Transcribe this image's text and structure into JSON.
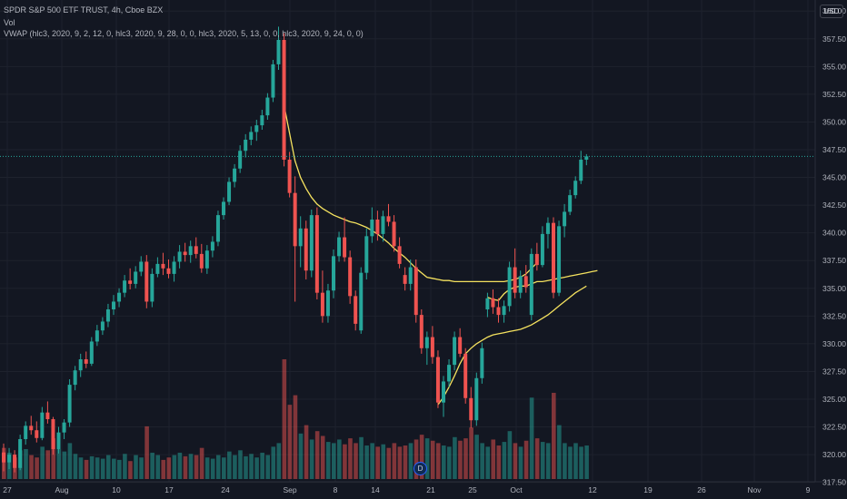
{
  "header": {
    "title": "SPDR S&P 500 ETF TRUST, 4h, Cboe BZX",
    "vol_label": "Vol",
    "vwap_label": "VWAP (hlc3, 2020, 9, 2, 12, 0, hlc3, 2020, 9, 28, 0, 0, hlc3, 2020, 5, 13, 0, 0, hlc3, 2020, 9, 24, 0, 0)",
    "currency": "USD"
  },
  "event_badge": "D",
  "colors": {
    "background": "#131722",
    "up": "#26a69a",
    "down": "#ef5350",
    "vwap": "#f5e25f",
    "grid": "#1e222d",
    "text": "#b2b5be"
  },
  "chart_data": {
    "type": "candlestick",
    "interval": "4h",
    "price_scale": {
      "ticks": [
        "360.00",
        "357.50",
        "355.00",
        "352.50",
        "350.00",
        "347.50",
        "345.00",
        "342.50",
        "340.00",
        "337.50",
        "335.00",
        "332.50",
        "330.00",
        "327.50",
        "325.00",
        "322.50",
        "320.00",
        "317.50"
      ],
      "range": [
        316.0,
        361.0
      ]
    },
    "time_axis": {
      "labels": [
        "27",
        "Aug",
        "10",
        "17",
        "24",
        "Sep",
        "8",
        "14",
        "21",
        "25",
        "Oct",
        "12",
        "19",
        "26",
        "Nov",
        "9"
      ]
    },
    "current_price": 346.9,
    "candles": [
      [
        320.2,
        321.0,
        318.5,
        319.3
      ],
      [
        319.3,
        320.6,
        318.7,
        320.0
      ],
      [
        320.0,
        320.4,
        318.4,
        318.8
      ],
      [
        318.8,
        321.8,
        318.6,
        321.4
      ],
      [
        321.4,
        323.0,
        320.9,
        322.6
      ],
      [
        322.6,
        323.5,
        321.8,
        322.2
      ],
      [
        322.2,
        323.0,
        321.1,
        321.5
      ],
      [
        321.5,
        324.3,
        321.3,
        323.8
      ],
      [
        323.8,
        324.8,
        322.8,
        323.2
      ],
      [
        323.2,
        323.4,
        320.0,
        320.5
      ],
      [
        320.5,
        322.5,
        320.1,
        322.0
      ],
      [
        322.0,
        323.2,
        321.4,
        322.9
      ],
      [
        322.9,
        326.8,
        322.5,
        326.3
      ],
      [
        326.3,
        328.0,
        325.8,
        327.6
      ],
      [
        327.6,
        329.1,
        327.0,
        328.6
      ],
      [
        328.6,
        329.3,
        327.8,
        328.2
      ],
      [
        328.2,
        330.6,
        328.0,
        330.2
      ],
      [
        330.2,
        331.7,
        329.8,
        331.2
      ],
      [
        331.2,
        332.4,
        330.8,
        332.0
      ],
      [
        332.0,
        333.6,
        331.5,
        333.1
      ],
      [
        333.1,
        334.4,
        332.6,
        333.8
      ],
      [
        333.8,
        335.0,
        333.3,
        334.6
      ],
      [
        334.6,
        336.2,
        334.2,
        335.7
      ],
      [
        335.7,
        336.8,
        334.9,
        335.4
      ],
      [
        335.4,
        337.0,
        335.0,
        336.5
      ],
      [
        336.5,
        337.9,
        336.1,
        337.4
      ],
      [
        337.4,
        338.0,
        333.2,
        333.8
      ],
      [
        333.8,
        336.8,
        333.3,
        336.3
      ],
      [
        336.3,
        337.8,
        336.0,
        337.2
      ],
      [
        337.2,
        338.2,
        336.2,
        336.8
      ],
      [
        336.8,
        337.6,
        335.9,
        336.3
      ],
      [
        336.3,
        337.9,
        335.6,
        337.4
      ],
      [
        337.4,
        338.9,
        336.8,
        338.3
      ],
      [
        338.3,
        339.1,
        337.4,
        338.0
      ],
      [
        338.0,
        339.3,
        337.3,
        338.8
      ],
      [
        338.8,
        339.6,
        337.7,
        338.1
      ],
      [
        338.1,
        339.0,
        336.4,
        336.8
      ],
      [
        336.8,
        338.9,
        336.3,
        338.4
      ],
      [
        338.4,
        339.7,
        337.8,
        339.2
      ],
      [
        339.2,
        342.0,
        338.8,
        341.6
      ],
      [
        341.6,
        343.2,
        341.2,
        342.8
      ],
      [
        342.8,
        345.0,
        342.5,
        344.6
      ],
      [
        344.6,
        346.2,
        344.1,
        345.8
      ],
      [
        345.8,
        347.9,
        345.4,
        347.4
      ],
      [
        347.4,
        348.9,
        346.8,
        348.4
      ],
      [
        348.4,
        349.6,
        347.9,
        349.1
      ],
      [
        349.1,
        350.2,
        348.3,
        349.7
      ],
      [
        349.7,
        351.1,
        349.3,
        350.6
      ],
      [
        350.6,
        352.6,
        350.2,
        352.2
      ],
      [
        352.2,
        355.6,
        351.8,
        355.2
      ],
      [
        355.2,
        358.6,
        354.7,
        357.4
      ],
      [
        357.4,
        358.0,
        346.0,
        346.6
      ],
      [
        346.6,
        347.3,
        343.2,
        343.6
      ],
      [
        343.6,
        345.1,
        333.8,
        338.8
      ],
      [
        338.8,
        341.5,
        336.9,
        340.4
      ],
      [
        340.4,
        341.1,
        335.8,
        336.6
      ],
      [
        336.6,
        342.1,
        336.0,
        341.6
      ],
      [
        341.6,
        342.3,
        334.0,
        334.6
      ],
      [
        334.6,
        336.6,
        331.9,
        332.5
      ],
      [
        332.5,
        335.4,
        331.9,
        334.8
      ],
      [
        334.8,
        338.5,
        334.1,
        337.9
      ],
      [
        337.9,
        340.1,
        337.4,
        339.6
      ],
      [
        339.6,
        341.4,
        337.4,
        337.8
      ],
      [
        337.8,
        338.4,
        333.6,
        334.3
      ],
      [
        334.3,
        334.8,
        331.2,
        331.8
      ],
      [
        331.2,
        336.9,
        330.9,
        336.4
      ],
      [
        336.4,
        340.4,
        335.8,
        339.7
      ],
      [
        339.7,
        342.3,
        339.1,
        341.2
      ],
      [
        341.2,
        342.0,
        339.3,
        339.9
      ],
      [
        339.9,
        342.0,
        339.2,
        341.5
      ],
      [
        341.5,
        342.6,
        340.6,
        341.0
      ],
      [
        341.0,
        341.6,
        338.3,
        338.8
      ],
      [
        338.8,
        339.6,
        336.8,
        337.2
      ],
      [
        336.2,
        336.9,
        334.8,
        335.4
      ],
      [
        335.4,
        337.6,
        334.8,
        336.9
      ],
      [
        336.9,
        337.6,
        331.9,
        332.6
      ],
      [
        332.6,
        333.1,
        329.1,
        329.6
      ],
      [
        329.6,
        331.1,
        328.1,
        330.6
      ],
      [
        330.6,
        331.6,
        328.2,
        328.8
      ],
      [
        328.8,
        329.4,
        324.2,
        324.7
      ],
      [
        324.7,
        327.1,
        323.4,
        326.6
      ],
      [
        326.6,
        328.6,
        326.1,
        328.1
      ],
      [
        328.1,
        331.1,
        327.6,
        330.6
      ],
      [
        330.6,
        331.4,
        328.8,
        329.1
      ],
      [
        329.1,
        329.6,
        324.6,
        325.1
      ],
      [
        325.1,
        326.1,
        322.4,
        323.1
      ],
      [
        323.1,
        327.4,
        322.6,
        326.9
      ],
      [
        326.9,
        330.1,
        326.4,
        329.6
      ],
      [
        333.1,
        334.6,
        332.4,
        334.1
      ],
      [
        334.1,
        334.9,
        332.7,
        333.3
      ],
      [
        333.3,
        334.1,
        331.9,
        332.6
      ],
      [
        332.6,
        333.9,
        331.9,
        333.4
      ],
      [
        333.4,
        337.4,
        332.9,
        336.9
      ],
      [
        336.9,
        338.6,
        334.1,
        334.6
      ],
      [
        334.6,
        336.6,
        334.1,
        336.1
      ],
      [
        336.1,
        337.1,
        334.6,
        335.1
      ],
      [
        332.6,
        338.6,
        332.1,
        338.1
      ],
      [
        338.1,
        339.1,
        336.6,
        337.1
      ],
      [
        337.1,
        340.6,
        336.9,
        339.9
      ],
      [
        339.9,
        341.4,
        338.6,
        340.9
      ],
      [
        340.9,
        341.4,
        334.1,
        334.6
      ],
      [
        334.6,
        341.1,
        334.3,
        340.6
      ],
      [
        340.6,
        342.6,
        339.6,
        341.9
      ],
      [
        341.9,
        343.9,
        341.6,
        343.4
      ],
      [
        343.4,
        345.1,
        343.1,
        344.7
      ],
      [
        344.7,
        347.4,
        344.4,
        346.6
      ],
      [
        346.6,
        347.1,
        346.1,
        346.9
      ]
    ],
    "volumes": [
      0.26,
      0.22,
      0.18,
      0.24,
      0.25,
      0.2,
      0.18,
      0.27,
      0.24,
      0.34,
      0.25,
      0.23,
      0.3,
      0.21,
      0.18,
      0.16,
      0.19,
      0.18,
      0.17,
      0.2,
      0.17,
      0.16,
      0.21,
      0.15,
      0.2,
      0.18,
      0.44,
      0.22,
      0.2,
      0.16,
      0.18,
      0.2,
      0.22,
      0.19,
      0.21,
      0.2,
      0.26,
      0.18,
      0.17,
      0.2,
      0.18,
      0.23,
      0.2,
      0.24,
      0.19,
      0.21,
      0.18,
      0.22,
      0.2,
      0.27,
      0.3,
      1.0,
      0.62,
      0.7,
      0.38,
      0.45,
      0.33,
      0.4,
      0.36,
      0.31,
      0.3,
      0.33,
      0.29,
      0.34,
      0.3,
      0.35,
      0.28,
      0.3,
      0.27,
      0.29,
      0.26,
      0.3,
      0.27,
      0.28,
      0.3,
      0.33,
      0.37,
      0.34,
      0.32,
      0.3,
      0.28,
      0.27,
      0.35,
      0.32,
      0.34,
      0.43,
      0.37,
      0.3,
      0.27,
      0.33,
      0.28,
      0.31,
      0.4,
      0.3,
      0.27,
      0.32,
      0.68,
      0.34,
      0.31,
      0.3,
      0.72,
      0.45,
      0.3,
      0.27,
      0.3,
      0.27,
      0.28
    ],
    "vwap_lines": [
      {
        "start_index": 51,
        "values": [
          351.5,
          349.0,
          346.5,
          345.0,
          344.0,
          343.2,
          342.6,
          342.2,
          341.9,
          341.6,
          341.4,
          341.2,
          341.0,
          340.9,
          340.7,
          340.5,
          340.2,
          339.9,
          339.5,
          339.1,
          338.6,
          338.2,
          337.8,
          337.3,
          336.8,
          336.4,
          336.0,
          335.9,
          335.8,
          335.7,
          335.7,
          335.6,
          335.6,
          335.6,
          335.6,
          335.6,
          335.6,
          335.6,
          335.6,
          335.6,
          335.6,
          335.7,
          335.8,
          336.0,
          336.3,
          336.8,
          337.3
        ]
      },
      {
        "start_index": 79,
        "values": [
          324.5,
          325.2,
          326.1,
          327.1,
          328.2,
          329.1,
          329.6,
          330.0,
          330.3,
          330.6,
          330.8,
          330.9,
          331.0,
          331.1,
          331.2,
          331.3,
          331.5,
          331.7,
          332.0,
          332.3,
          332.6,
          333.0,
          333.4,
          333.8,
          334.2,
          334.6,
          334.9,
          335.2
        ]
      },
      {
        "start_index": 88,
        "values": [
          334.2,
          334.0,
          333.9,
          334.5,
          334.9,
          335.1,
          335.2,
          335.2,
          335.4,
          335.6,
          335.6,
          335.7,
          335.8,
          335.9,
          336.0,
          336.1,
          336.2,
          336.3,
          336.4,
          336.5,
          336.6
        ]
      }
    ]
  }
}
